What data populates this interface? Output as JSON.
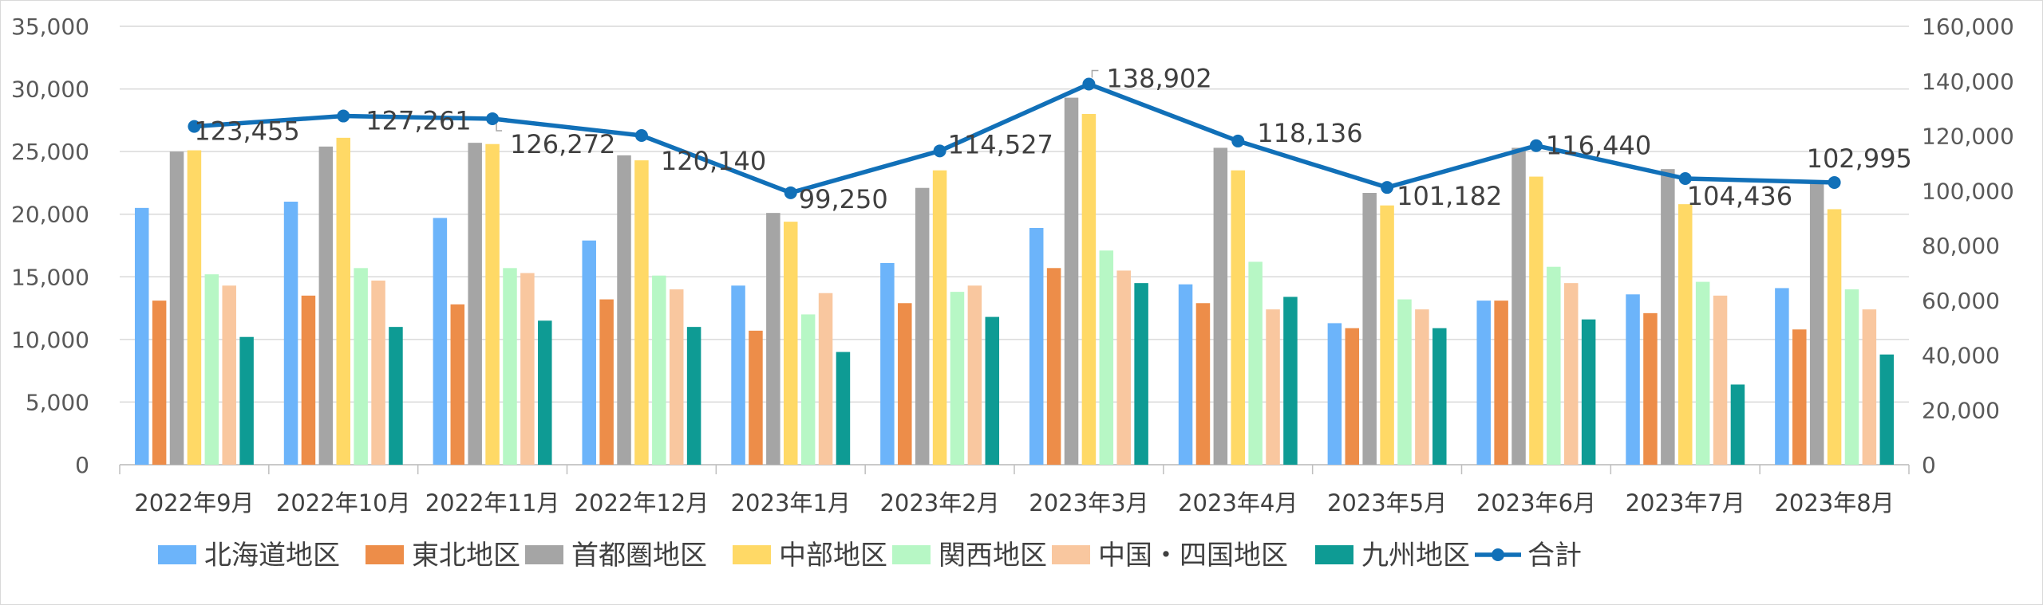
{
  "chart_data": {
    "type": "bar",
    "categories": [
      "2022年9月",
      "2022年10月",
      "2022年11月",
      "2022年12月",
      "2023年1月",
      "2023年2月",
      "2023年3月",
      "2023年4月",
      "2023年5月",
      "2023年6月",
      "2023年7月",
      "2023年8月"
    ],
    "series": [
      {
        "name": "北海道地区",
        "color": "#6CB4FA",
        "values": [
          20500,
          21000,
          19700,
          17900,
          14300,
          16100,
          18900,
          14400,
          11300,
          13100,
          13600,
          14100
        ]
      },
      {
        "name": "東北地区",
        "color": "#ED8D49",
        "values": [
          13100,
          13500,
          12800,
          13200,
          10700,
          12900,
          15700,
          12900,
          10900,
          13100,
          12100,
          10800
        ]
      },
      {
        "name": "首都圏地区",
        "color": "#A5A5A5",
        "values": [
          25000,
          25400,
          25700,
          24700,
          20100,
          22100,
          29300,
          25300,
          21700,
          25300,
          23600,
          22600
        ]
      },
      {
        "name": "中部地区",
        "color": "#FFD966",
        "values": [
          25100,
          26100,
          25600,
          24300,
          19400,
          23500,
          28000,
          23500,
          20700,
          23000,
          20800,
          20400
        ]
      },
      {
        "name": "関西地区",
        "color": "#B7F7C5",
        "values": [
          15200,
          15700,
          15700,
          15100,
          12000,
          13800,
          17100,
          16200,
          13200,
          15800,
          14600,
          14000
        ]
      },
      {
        "name": "中国・四国地区",
        "color": "#F9C79F",
        "values": [
          14300,
          14700,
          15300,
          14000,
          13700,
          14300,
          15500,
          12400,
          12400,
          14500,
          13500,
          12400
        ]
      },
      {
        "name": "九州地区",
        "color": "#0E9B94",
        "values": [
          10200,
          11000,
          11500,
          11000,
          9000,
          11800,
          14500,
          13400,
          10900,
          11600,
          6400,
          8800
        ]
      }
    ],
    "line_series": {
      "name": "合計",
      "color": "#1170B8",
      "values": [
        123455,
        127261,
        126272,
        120140,
        99250,
        114527,
        138902,
        118136,
        101182,
        116440,
        104436,
        102995
      ],
      "labels": [
        "123,455",
        "127,261",
        "126,272",
        "120,140",
        "99,250",
        "114,527",
        "138,902",
        "118,136",
        "101,182",
        "116,440",
        "104,436",
        "102,995"
      ]
    },
    "y_left": {
      "min": 0,
      "max": 35000,
      "step": 5000,
      "ticks": [
        "0",
        "5,000",
        "10,000",
        "15,000",
        "20,000",
        "25,000",
        "30,000",
        "35,000"
      ]
    },
    "y_right": {
      "min": 0,
      "max": 160000,
      "step": 20000,
      "ticks": [
        "0",
        "20,000",
        "40,000",
        "60,000",
        "80,000",
        "100,000",
        "120,000",
        "140,000",
        "160,000"
      ]
    },
    "legend_position": "bottom",
    "grid": true
  }
}
